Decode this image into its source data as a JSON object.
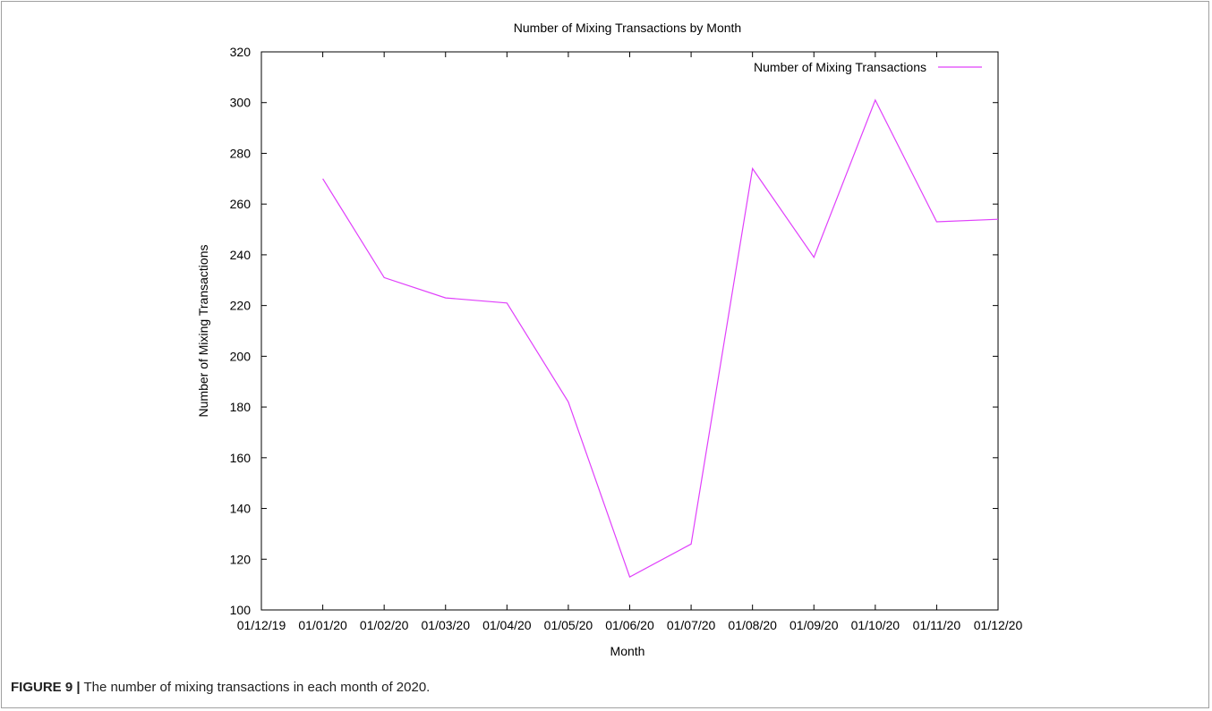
{
  "chart_data": {
    "type": "line",
    "title": "Number of Mixing Transactions by Month",
    "xlabel": "Month",
    "ylabel": "Number of Mixing Transactions",
    "x_tick_labels": [
      "01/12/19",
      "01/01/20",
      "01/02/20",
      "01/03/20",
      "01/04/20",
      "01/05/20",
      "01/06/20",
      "01/07/20",
      "01/08/20",
      "01/09/20",
      "01/10/20",
      "01/11/20",
      "01/12/20"
    ],
    "y_ticks": [
      100,
      120,
      140,
      160,
      180,
      200,
      220,
      240,
      260,
      280,
      300,
      320
    ],
    "ylim": [
      100,
      320
    ],
    "grid": false,
    "legend_position": "top-right",
    "series": [
      {
        "name": "Number of Mixing Transactions",
        "color": "#e040fb",
        "x": [
          "01/01/20",
          "01/02/20",
          "01/03/20",
          "01/04/20",
          "01/05/20",
          "01/06/20",
          "01/07/20",
          "01/08/20",
          "01/09/20",
          "01/10/20",
          "01/11/20",
          "01/12/20"
        ],
        "values": [
          270,
          231,
          223,
          221,
          182,
          113,
          126,
          274,
          239,
          301,
          253,
          254
        ]
      }
    ]
  },
  "caption": {
    "lead": "FIGURE 9 |",
    "text": " The number of mixing transactions in each month of 2020."
  }
}
